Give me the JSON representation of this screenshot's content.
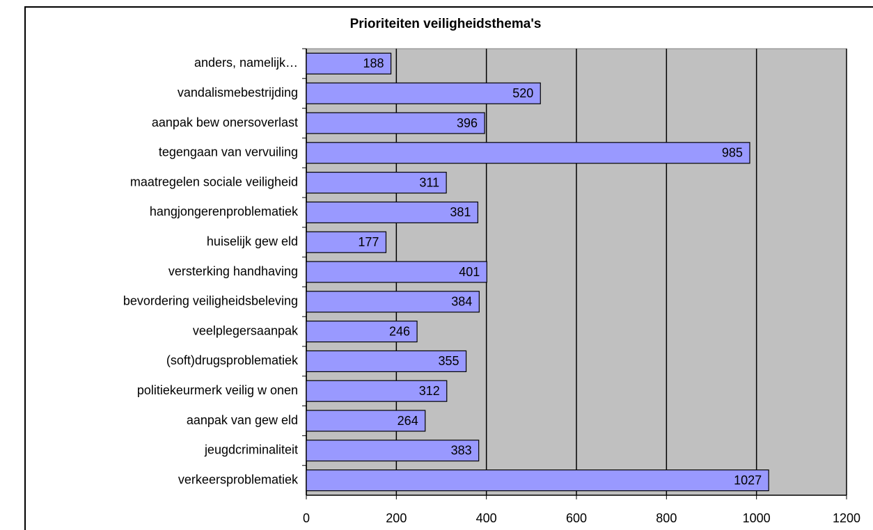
{
  "chart_data": {
    "type": "bar",
    "orientation": "horizontal",
    "title": "Prioriteiten veiligheidsthema's",
    "categories": [
      "anders, namelijk…",
      "vandalismebestrijding",
      "aanpak bew onersoverlast",
      "tegengaan van vervuiling",
      "maatregelen sociale veiligheid",
      "hangjongerenproblematiek",
      "huiselijk gew eld",
      "versterking handhaving",
      "bevordering veiligheidsbeleving",
      "veelplegersaanpak",
      "(soft)drugsproblematiek",
      "politiekeurmerk veilig w onen",
      "aanpak van gew eld",
      "jeugdcriminaliteit",
      "verkeersproblematiek"
    ],
    "values": [
      188,
      520,
      396,
      985,
      311,
      381,
      177,
      401,
      384,
      246,
      355,
      312,
      264,
      383,
      1027
    ],
    "color": "#9999ff",
    "plot_background": "#c0c0c0",
    "xlim": [
      0,
      1200
    ],
    "xticks": [
      0,
      200,
      400,
      600,
      800,
      1000,
      1200
    ],
    "grid": true
  }
}
